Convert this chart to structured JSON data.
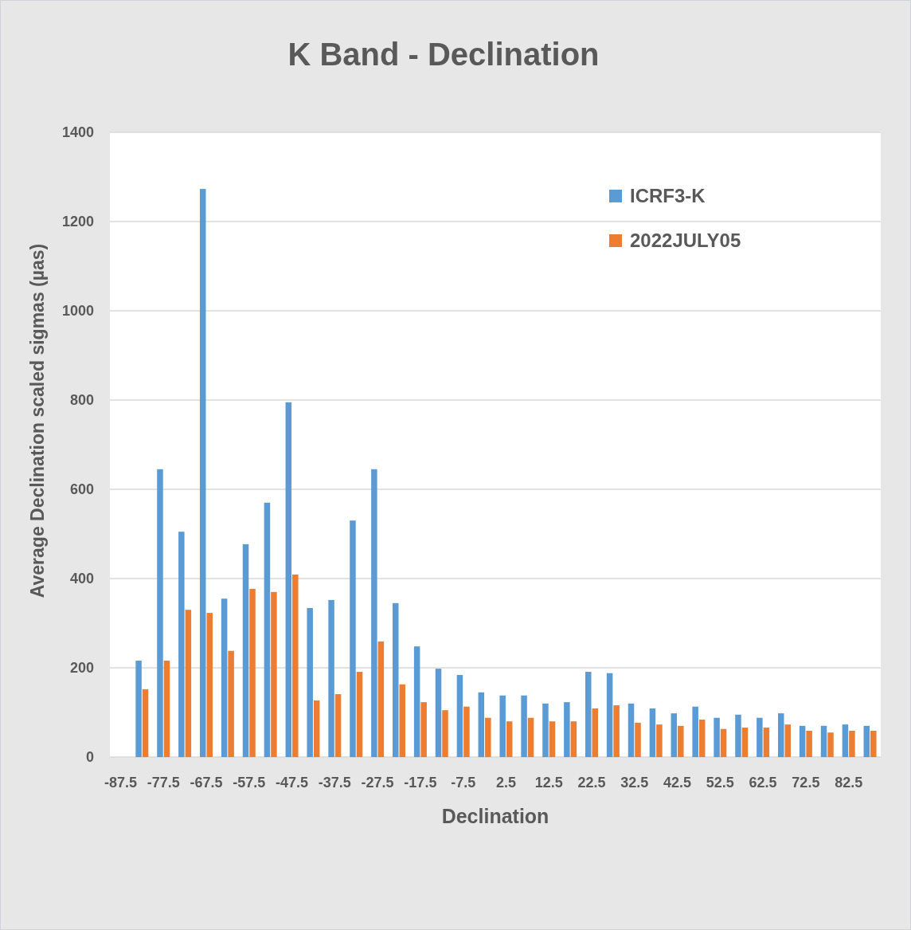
{
  "chart_data": {
    "type": "bar",
    "title": "K Band - Declination",
    "xlabel": "Declination",
    "ylabel": "Average Declination scaled sigmas (µas)",
    "categories": [
      "-87.5",
      null,
      "-77.5",
      null,
      "-67.5",
      null,
      "-57.5",
      null,
      "-47.5",
      null,
      "-37.5",
      null,
      "-27.5",
      null,
      "-17.5",
      null,
      "-7.5",
      null,
      "2.5",
      null,
      "12.5",
      null,
      "22.5",
      null,
      "32.5",
      null,
      "42.5",
      null,
      "52.5",
      null,
      "62.5",
      null,
      "72.5",
      null,
      "82.5",
      null
    ],
    "series": [
      {
        "name": "ICRF3-K",
        "color": "#5b9bd5",
        "values": [
          null,
          216,
          645,
          505,
          1273,
          355,
          477,
          570,
          795,
          334,
          352,
          530,
          645,
          345,
          248,
          198,
          184,
          145,
          138,
          138,
          120,
          123,
          191,
          188,
          120,
          109,
          98,
          113,
          88,
          95,
          88,
          98,
          70,
          70,
          73,
          70
        ]
      },
      {
        "name": "2022JULY05",
        "color": "#ed7d31",
        "values": [
          null,
          152,
          216,
          330,
          323,
          238,
          377,
          370,
          409,
          127,
          141,
          191,
          259,
          163,
          123,
          105,
          113,
          88,
          80,
          88,
          80,
          80,
          109,
          116,
          77,
          73,
          70,
          84,
          63,
          66,
          66,
          73,
          59,
          55,
          59,
          59
        ]
      }
    ],
    "ylim": [
      0,
      1400
    ],
    "yticks": [
      0,
      200,
      400,
      600,
      800,
      1000,
      1200,
      1400
    ],
    "grid": "y",
    "legend": "top right"
  }
}
